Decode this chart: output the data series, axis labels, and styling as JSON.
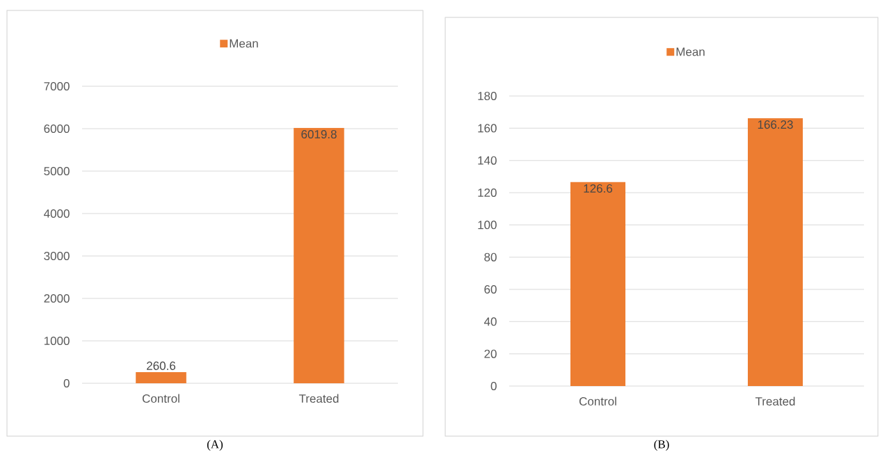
{
  "chart_data": [
    {
      "type": "bar",
      "categories": [
        "Control",
        "Treated"
      ],
      "series": [
        {
          "name": "Mean",
          "color": "#ed7d31",
          "values": [
            260.6,
            6019.8
          ]
        }
      ],
      "ylim": [
        0,
        7000
      ],
      "yticks": [
        0,
        1000,
        2000,
        3000,
        4000,
        5000,
        6000,
        7000
      ],
      "grid": "y",
      "legend": "top",
      "data_labels": true,
      "annotations": [
        "(A)"
      ]
    },
    {
      "type": "bar",
      "categories": [
        "Control",
        "Treated"
      ],
      "series": [
        {
          "name": "Mean",
          "color": "#ed7d31",
          "values": [
            126.6,
            166.23
          ]
        }
      ],
      "ylim": [
        0,
        180
      ],
      "yticks": [
        0,
        20,
        40,
        60,
        80,
        100,
        120,
        140,
        160,
        180
      ],
      "grid": "y",
      "legend": "top",
      "data_labels": true,
      "annotations": [
        "(B)"
      ]
    }
  ]
}
